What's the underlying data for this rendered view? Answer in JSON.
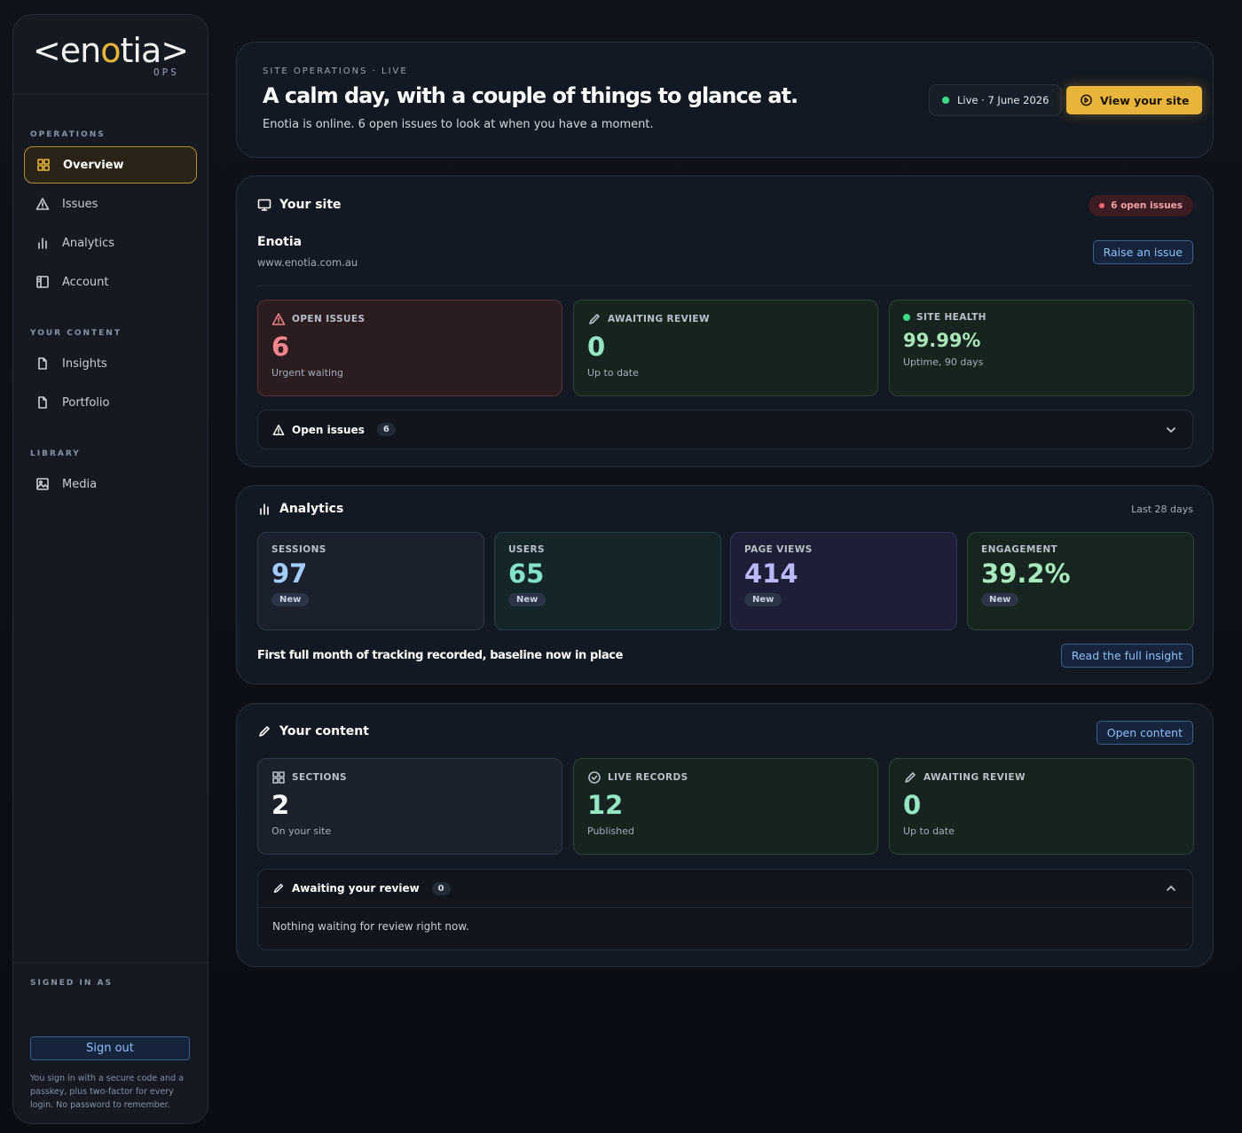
{
  "sidebar": {
    "logo": {
      "before": "<en",
      "accent": "o",
      "after": "tia>",
      "sub": "OPS"
    },
    "groups": [
      {
        "heading": "OPERATIONS",
        "items": [
          "Overview",
          "Issues",
          "Analytics",
          "Account"
        ]
      },
      {
        "heading": "YOUR CONTENT",
        "items": [
          "Insights",
          "Portfolio"
        ]
      },
      {
        "heading": "LIBRARY",
        "items": [
          "Media"
        ]
      }
    ],
    "signed_in_label": "SIGNED IN AS",
    "sign_out": "Sign out",
    "note": "You sign in with a secure code and a passkey, plus two-factor for every login. No password to remember."
  },
  "hero": {
    "eyebrow": "SITE OPERATIONS · LIVE",
    "title": "A calm day, with a couple of things to glance at.",
    "subtitle": "Enotia is online. 6 open issues to look at when you have a moment.",
    "status": "Live · 7 June 2026",
    "button": "View your site"
  },
  "site": {
    "heading": "Your site",
    "badge": "6 open issues",
    "name": "Enotia",
    "url": "www.enotia.com.au",
    "button": "Raise an issue",
    "stats": [
      {
        "label": "OPEN ISSUES",
        "value": 6,
        "note": "Urgent waiting"
      },
      {
        "label": "AWAITING REVIEW",
        "value": 0,
        "note": "Up to date"
      },
      {
        "label": "SITE HEALTH",
        "value": "99.99%",
        "note": "Uptime, 90 days"
      }
    ],
    "accordion": {
      "label": "Open issues",
      "count": 6
    }
  },
  "analytics": {
    "heading": "Analytics",
    "range": "Last 28 days",
    "stats": [
      {
        "label": "SESSIONS",
        "value": 97,
        "tag": "New"
      },
      {
        "label": "USERS",
        "value": 65,
        "tag": "New"
      },
      {
        "label": "PAGE VIEWS",
        "value": 414,
        "tag": "New"
      },
      {
        "label": "ENGAGEMENT",
        "value": "39.2%",
        "tag": "New"
      }
    ],
    "insight": "First full month of tracking recorded, baseline now in place",
    "button": "Read the full insight"
  },
  "content": {
    "heading": "Your content",
    "button": "Open content",
    "stats": [
      {
        "label": "SECTIONS",
        "value": 2,
        "note": "On your site"
      },
      {
        "label": "LIVE RECORDS",
        "value": 12,
        "note": "Published"
      },
      {
        "label": "AWAITING REVIEW",
        "value": 0,
        "note": "Up to date"
      }
    ],
    "accordion": {
      "label": "Awaiting your review",
      "count": 0,
      "body": "Nothing waiting for review right now."
    }
  }
}
